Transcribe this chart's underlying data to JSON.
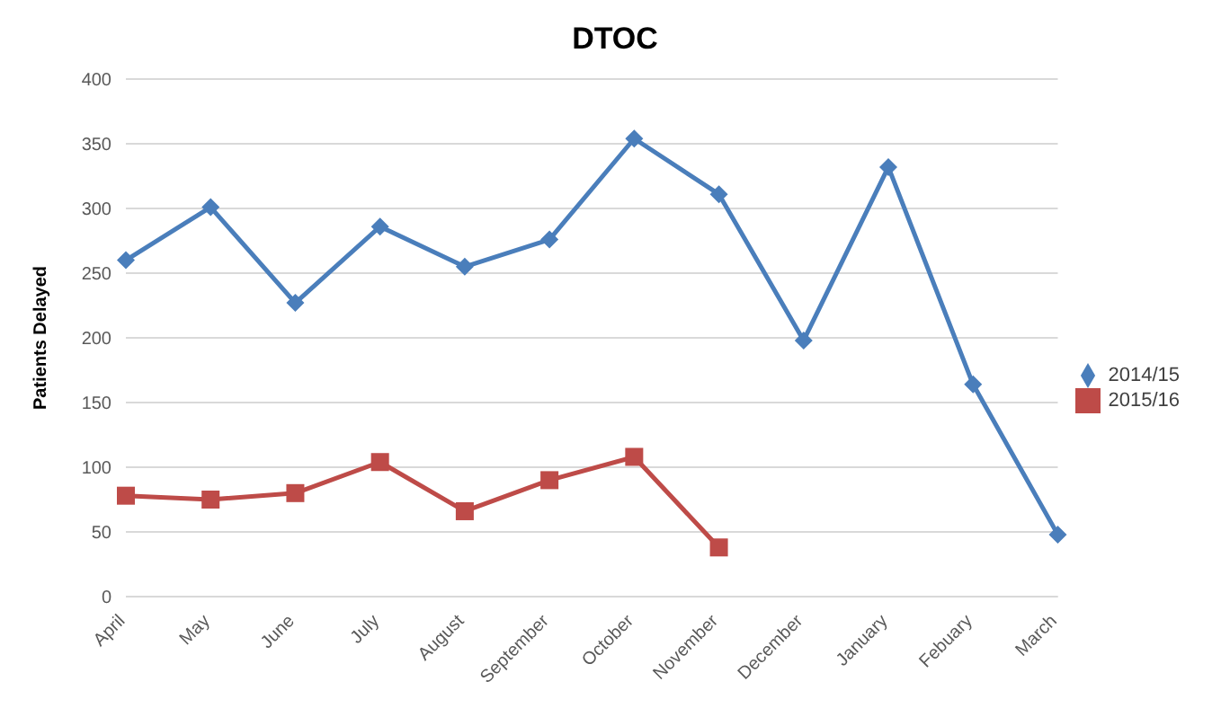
{
  "chart_data": {
    "type": "line",
    "title": "DTOC",
    "ylabel": "Patients Delayed",
    "categories": [
      "April",
      "May",
      "June",
      "July",
      "August",
      "September",
      "October",
      "November",
      "December",
      "January",
      "Febuary",
      "March"
    ],
    "series": [
      {
        "name": "2014/15",
        "color": "#4a7ebb",
        "marker": "diamond",
        "values": [
          260,
          301,
          227,
          286,
          255,
          276,
          354,
          311,
          198,
          332,
          164,
          48
        ]
      },
      {
        "name": "2015/16",
        "color": "#be4b48",
        "marker": "square",
        "values": [
          78,
          75,
          80,
          104,
          66,
          90,
          108,
          38,
          null,
          null,
          null,
          null
        ]
      }
    ],
    "ylim": [
      0,
      400
    ],
    "yticks": [
      0,
      50,
      100,
      150,
      200,
      250,
      300,
      350,
      400
    ],
    "grid": "y",
    "legend": "right"
  }
}
